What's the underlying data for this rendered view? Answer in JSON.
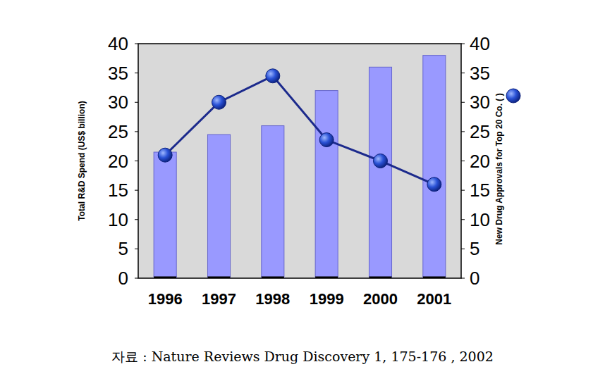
{
  "chart_data": {
    "type": "bar",
    "categories": [
      "1996",
      "1997",
      "1998",
      "1999",
      "2000",
      "2001"
    ],
    "series": [
      {
        "type": "bar",
        "color": "#9999ff",
        "values": [
          21.5,
          24.5,
          26,
          32,
          36,
          38
        ]
      },
      {
        "type": "line",
        "axis": "y2",
        "color": "#1c2a8c",
        "marker": "circle",
        "line_style": "solid",
        "values": [
          21,
          30,
          34.5,
          23.6,
          20,
          16
        ]
      }
    ],
    "y_label": "Total R&D Spend (US$ billion)",
    "y2_label": "New Drug Approvals for Top 20 Co. (   )",
    "ylim": [
      0,
      40
    ],
    "yticks": [
      0,
      5,
      10,
      15,
      20,
      25,
      30,
      35,
      40
    ],
    "y2lim": [
      0,
      40
    ],
    "y2ticks": [
      0,
      5,
      10,
      15,
      20,
      25,
      30,
      35,
      40
    ],
    "grid": false,
    "source": "자료 : Nature Reviews Drug Discovery 1, 175-176 , 2002"
  }
}
